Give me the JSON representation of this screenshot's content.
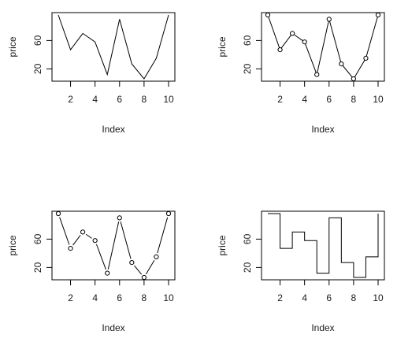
{
  "chart_data": [
    {
      "type": "line",
      "line_style": "lines",
      "xlabel": "Index",
      "ylabel": "price",
      "x": [
        1,
        2,
        3,
        4,
        5,
        6,
        7,
        8,
        9,
        10
      ],
      "series": [
        {
          "values": [
            96,
            47,
            70,
            58,
            12,
            90,
            27,
            6,
            35,
            96
          ]
        }
      ],
      "x_ticks": [
        "2",
        "4",
        "6",
        "8",
        "10"
      ],
      "y_ticks": [
        "20",
        "60"
      ],
      "grid": false,
      "color": "#000000"
    },
    {
      "type": "line",
      "line_style": "both",
      "xlabel": "Index",
      "ylabel": "price",
      "x": [
        1,
        2,
        3,
        4,
        5,
        6,
        7,
        8,
        9,
        10
      ],
      "series": [
        {
          "values": [
            96,
            47,
            70,
            58,
            12,
            90,
            27,
            6,
            35,
            96
          ]
        }
      ],
      "x_ticks": [
        "2",
        "4",
        "6",
        "8",
        "10"
      ],
      "y_ticks": [
        "20",
        "60"
      ],
      "grid": false,
      "color": "#000000"
    },
    {
      "type": "line",
      "line_style": "broken",
      "xlabel": "Index",
      "ylabel": "price",
      "x": [
        1,
        2,
        3,
        4,
        5,
        6,
        7,
        8,
        9,
        10
      ],
      "series": [
        {
          "values": [
            96,
            47,
            70,
            58,
            12,
            90,
            27,
            6,
            35,
            96
          ]
        }
      ],
      "x_ticks": [
        "2",
        "4",
        "6",
        "8",
        "10"
      ],
      "y_ticks": [
        "20",
        "60"
      ],
      "grid": false,
      "color": "#000000"
    },
    {
      "type": "line",
      "line_style": "steps",
      "xlabel": "Index",
      "ylabel": "price",
      "x": [
        1,
        2,
        3,
        4,
        5,
        6,
        7,
        8,
        9,
        10
      ],
      "series": [
        {
          "values": [
            96,
            47,
            70,
            58,
            12,
            90,
            27,
            6,
            35,
            96
          ]
        }
      ],
      "x_ticks": [
        "2",
        "4",
        "6",
        "8",
        "10"
      ],
      "y_ticks": [
        "20",
        "60"
      ],
      "grid": false,
      "color": "#000000"
    }
  ]
}
